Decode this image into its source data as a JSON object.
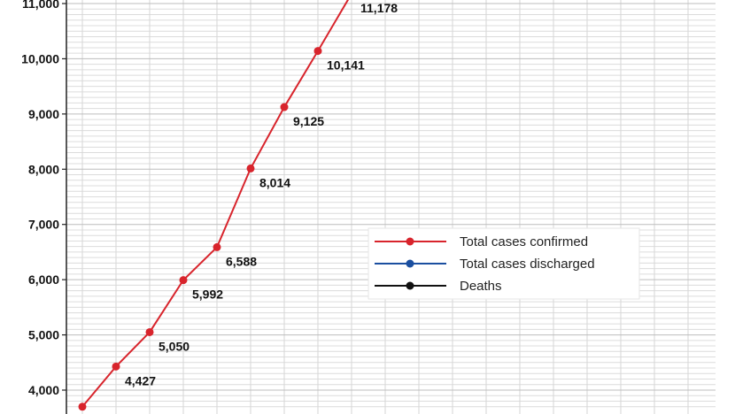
{
  "chart_data": {
    "type": "line",
    "title": "",
    "xlabel": "",
    "ylabel": "",
    "ylim": [
      3700,
      11060
    ],
    "y_ticks": [
      4000,
      5000,
      6000,
      7000,
      8000,
      9000,
      10000,
      11000
    ],
    "y_tick_labels": [
      "4,000",
      "5,000",
      "6,000",
      "7,000",
      "8,000",
      "9,000",
      "10,000",
      "11,000"
    ],
    "grid": true,
    "legend_position": "right",
    "series": [
      {
        "name": "Total cases confirmed",
        "color": "#d8242c",
        "values": [
          3699,
          4427,
          5050,
          5992,
          6588,
          8014,
          9125,
          10141,
          11178
        ],
        "labels": [
          "",
          "4,427",
          "5,050",
          "5,992",
          "6,588",
          "8,014",
          "9,125",
          "10,141",
          "11,178"
        ]
      },
      {
        "name": "Total cases discharged",
        "color": "#1b4fa0",
        "values": []
      },
      {
        "name": "Deaths",
        "color": "#111111",
        "values": []
      }
    ]
  }
}
